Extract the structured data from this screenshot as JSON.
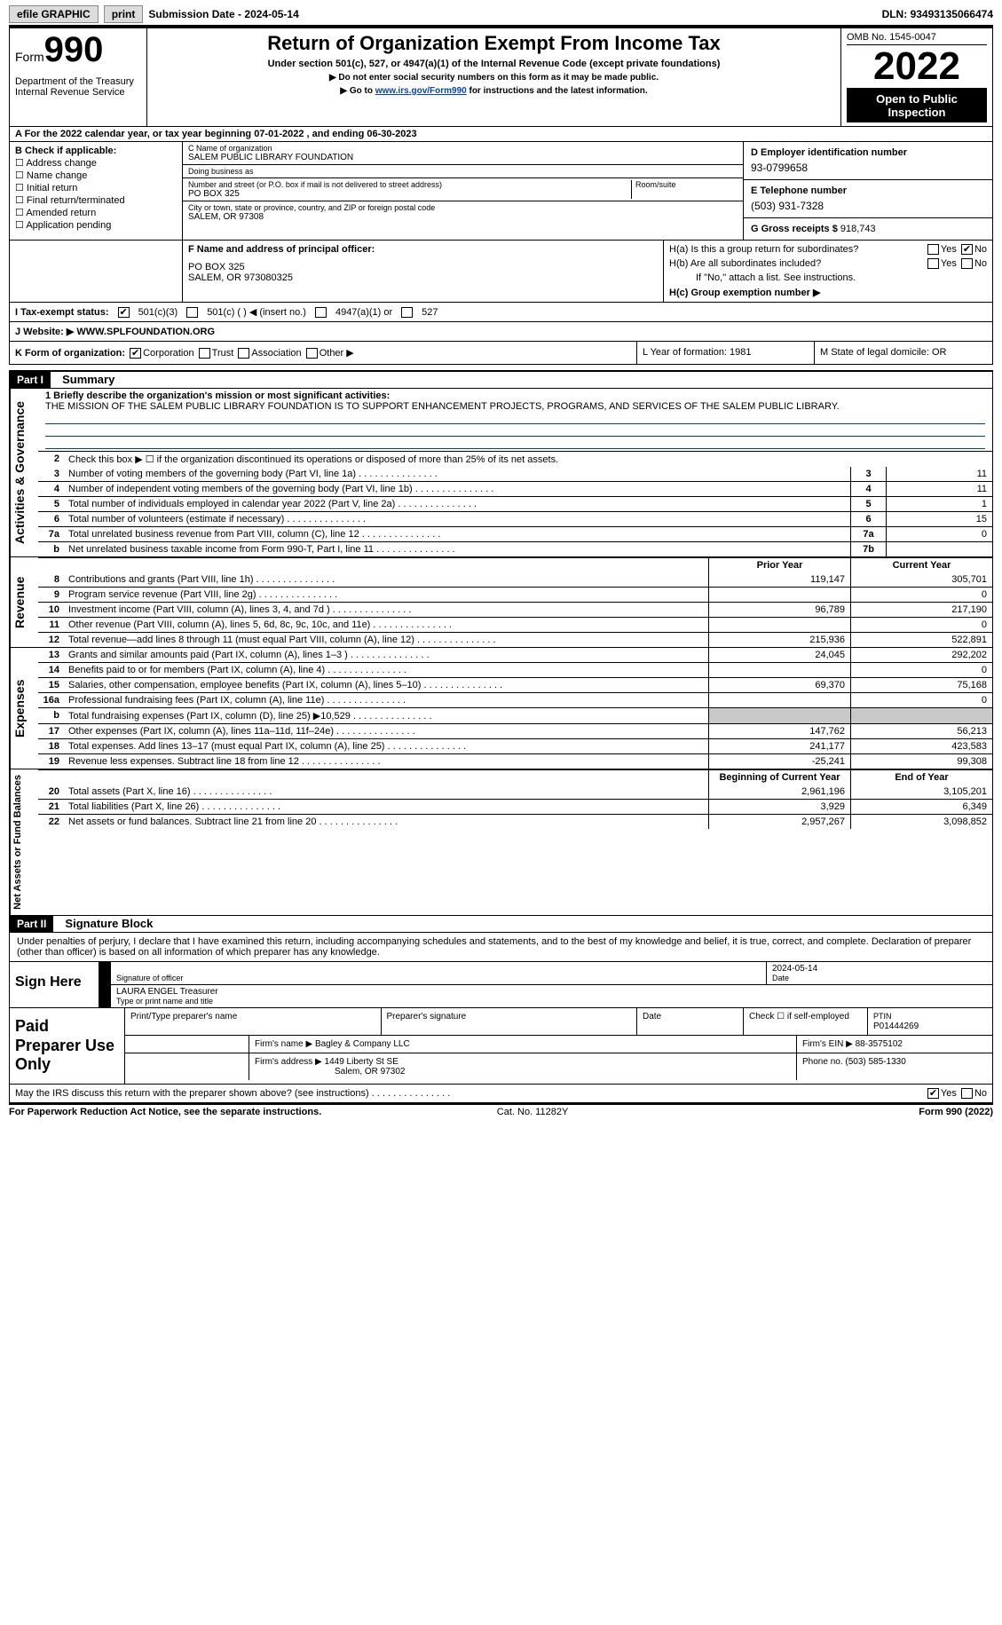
{
  "colors": {
    "link": "#0645ad",
    "black": "#000000",
    "grey": "#c8c8c8",
    "ruleblue": "#004080"
  },
  "topbar": {
    "efile": "efile GRAPHIC",
    "print": "print",
    "submission_label": "Submission Date - ",
    "submission_date": "2024-05-14",
    "dln_label": "DLN: ",
    "dln": "93493135066474"
  },
  "header": {
    "form_label": "Form",
    "form_no": "990",
    "dept": "Department of the Treasury",
    "irs": "Internal Revenue Service",
    "title": "Return of Organization Exempt From Income Tax",
    "sub1": "Under section 501(c), 527, or 4947(a)(1) of the Internal Revenue Code (except private foundations)",
    "sub2": "▶ Do not enter social security numbers on this form as it may be made public.",
    "sub3a": "▶ Go to ",
    "sub3_link": "www.irs.gov/Form990",
    "sub3b": " for instructions and the latest information.",
    "omb": "OMB No. 1545-0047",
    "year": "2022",
    "open": "Open to Public Inspection"
  },
  "rowA": "A  For the 2022 calendar year, or tax year beginning 07-01-2022    , and ending 06-30-2023",
  "boxB": {
    "label": "B Check if applicable:",
    "opts": [
      "Address change",
      "Name change",
      "Initial return",
      "Final return/terminated",
      "Amended return",
      "Application pending"
    ]
  },
  "boxC": {
    "name_lbl": "C Name of organization",
    "name": "SALEM PUBLIC LIBRARY FOUNDATION",
    "dba_lbl": "Doing business as",
    "dba": "",
    "addr_lbl": "Number and street (or P.O. box if mail is not delivered to street address)",
    "room_lbl": "Room/suite",
    "addr": "PO BOX 325",
    "city_lbl": "City or town, state or province, country, and ZIP or foreign postal code",
    "city": "SALEM, OR  97308"
  },
  "boxD": {
    "lbl": "D Employer identification number",
    "val": "93-0799658"
  },
  "boxE": {
    "lbl": "E Telephone number",
    "val": "(503) 931-7328"
  },
  "boxG": {
    "lbl": "G Gross receipts $ ",
    "val": "918,743"
  },
  "boxF": {
    "lbl": "F Name and address of principal officer:",
    "l1": "PO BOX 325",
    "l2": "SALEM, OR  973080325"
  },
  "boxH": {
    "a": "H(a)  Is this a group return for subordinates?",
    "b": "H(b)  Are all subordinates included?",
    "note": "If \"No,\" attach a list. See instructions.",
    "c": "H(c)  Group exemption number ▶"
  },
  "rowI": {
    "lbl": "I   Tax-exempt status:",
    "o1": "501(c)(3)",
    "o2": "501(c) (  ) ◀ (insert no.)",
    "o3": "4947(a)(1) or",
    "o4": "527"
  },
  "rowJ": {
    "lbl": "J   Website: ▶  ",
    "val": "WWW.SPLFOUNDATION.ORG"
  },
  "rowK": {
    "lbl": "K Form of organization:",
    "opts": [
      "Corporation",
      "Trust",
      "Association",
      "Other ▶"
    ],
    "L": "L Year of formation: 1981",
    "M": "M State of legal domicile: OR"
  },
  "part1": {
    "bar": "Part I",
    "title": "Summary",
    "mission_lbl": "1  Briefly describe the organization's mission or most significant activities:",
    "mission": "THE MISSION OF THE SALEM PUBLIC LIBRARY FOUNDATION IS TO SUPPORT ENHANCEMENT PROJECTS, PROGRAMS, AND SERVICES OF THE SALEM PUBLIC LIBRARY.",
    "line2": "Check this box ▶ ☐ if the organization discontinued its operations or disposed of more than 25% of its net assets.",
    "ag_label": "Activities & Governance",
    "rev_label": "Revenue",
    "exp_label": "Expenses",
    "na_label": "Net Assets or Fund Balances",
    "lines_ag": [
      {
        "n": "3",
        "t": "Number of voting members of the governing body (Part VI, line 1a)",
        "b": "3",
        "v": "11"
      },
      {
        "n": "4",
        "t": "Number of independent voting members of the governing body (Part VI, line 1b)",
        "b": "4",
        "v": "11"
      },
      {
        "n": "5",
        "t": "Total number of individuals employed in calendar year 2022 (Part V, line 2a)",
        "b": "5",
        "v": "1"
      },
      {
        "n": "6",
        "t": "Total number of volunteers (estimate if necessary)",
        "b": "6",
        "v": "15"
      },
      {
        "n": "7a",
        "t": "Total unrelated business revenue from Part VIII, column (C), line 12",
        "b": "7a",
        "v": "0"
      },
      {
        "n": "b",
        "t": "Net unrelated business taxable income from Form 990-T, Part I, line 11",
        "b": "7b",
        "v": ""
      }
    ],
    "col_prior": "Prior Year",
    "col_current": "Current Year",
    "lines_rev": [
      {
        "n": "8",
        "t": "Contributions and grants (Part VIII, line 1h)",
        "pv": "119,147",
        "cv": "305,701"
      },
      {
        "n": "9",
        "t": "Program service revenue (Part VIII, line 2g)",
        "pv": "",
        "cv": "0"
      },
      {
        "n": "10",
        "t": "Investment income (Part VIII, column (A), lines 3, 4, and 7d )",
        "pv": "96,789",
        "cv": "217,190"
      },
      {
        "n": "11",
        "t": "Other revenue (Part VIII, column (A), lines 5, 6d, 8c, 9c, 10c, and 11e)",
        "pv": "",
        "cv": "0"
      },
      {
        "n": "12",
        "t": "Total revenue—add lines 8 through 11 (must equal Part VIII, column (A), line 12)",
        "pv": "215,936",
        "cv": "522,891"
      }
    ],
    "lines_exp": [
      {
        "n": "13",
        "t": "Grants and similar amounts paid (Part IX, column (A), lines 1–3 )",
        "pv": "24,045",
        "cv": "292,202"
      },
      {
        "n": "14",
        "t": "Benefits paid to or for members (Part IX, column (A), line 4)",
        "pv": "",
        "cv": "0"
      },
      {
        "n": "15",
        "t": "Salaries, other compensation, employee benefits (Part IX, column (A), lines 5–10)",
        "pv": "69,370",
        "cv": "75,168"
      },
      {
        "n": "16a",
        "t": "Professional fundraising fees (Part IX, column (A), line 11e)",
        "pv": "",
        "cv": "0"
      },
      {
        "n": "b",
        "t": "Total fundraising expenses (Part IX, column (D), line 25) ▶10,529",
        "pv": "GREY",
        "cv": "GREY"
      },
      {
        "n": "17",
        "t": "Other expenses (Part IX, column (A), lines 11a–11d, 11f–24e)",
        "pv": "147,762",
        "cv": "56,213"
      },
      {
        "n": "18",
        "t": "Total expenses. Add lines 13–17 (must equal Part IX, column (A), line 25)",
        "pv": "241,177",
        "cv": "423,583"
      },
      {
        "n": "19",
        "t": "Revenue less expenses. Subtract line 18 from line 12",
        "pv": "-25,241",
        "cv": "99,308"
      }
    ],
    "col_beg": "Beginning of Current Year",
    "col_end": "End of Year",
    "lines_na": [
      {
        "n": "20",
        "t": "Total assets (Part X, line 16)",
        "pv": "2,961,196",
        "cv": "3,105,201"
      },
      {
        "n": "21",
        "t": "Total liabilities (Part X, line 26)",
        "pv": "3,929",
        "cv": "6,349"
      },
      {
        "n": "22",
        "t": "Net assets or fund balances. Subtract line 21 from line 20",
        "pv": "2,957,267",
        "cv": "3,098,852"
      }
    ]
  },
  "part2": {
    "bar": "Part II",
    "title": "Signature Block",
    "decl": "Under penalties of perjury, I declare that I have examined this return, including accompanying schedules and statements, and to the best of my knowledge and belief, it is true, correct, and complete. Declaration of preparer (other than officer) is based on all information of which preparer has any knowledge.",
    "sign_here": "Sign Here",
    "sig_officer": "Signature of officer",
    "sig_date": "2024-05-14",
    "date_lbl": "Date",
    "name_title": "LAURA ENGEL  Treasurer",
    "type_lbl": "Type or print name and title",
    "paid": "Paid Preparer Use Only",
    "prep_name_lbl": "Print/Type preparer's name",
    "prep_sig_lbl": "Preparer's signature",
    "check_self": "Check ☐ if self-employed",
    "ptin_lbl": "PTIN",
    "ptin": "P01444269",
    "firm_name_lbl": "Firm's name    ▶ ",
    "firm_name": "Bagley & Company LLC",
    "firm_ein_lbl": "Firm's EIN ▶ ",
    "firm_ein": "88-3575102",
    "firm_addr_lbl": "Firm's address ▶ ",
    "firm_addr1": "1449 Liberty St SE",
    "firm_addr2": "Salem, OR  97302",
    "phone_lbl": "Phone no. ",
    "phone": "(503) 585-1330",
    "discuss": "May the IRS discuss this return with the preparer shown above? (see instructions)",
    "yes": "Yes",
    "no": "No"
  },
  "footer": {
    "left": "For Paperwork Reduction Act Notice, see the separate instructions.",
    "mid": "Cat. No. 11282Y",
    "right": "Form 990 (2022)"
  }
}
